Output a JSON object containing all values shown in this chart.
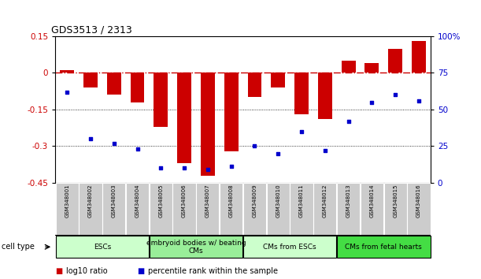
{
  "title": "GDS3513 / 2313",
  "samples": [
    "GSM348001",
    "GSM348002",
    "GSM348003",
    "GSM348004",
    "GSM348005",
    "GSM348006",
    "GSM348007",
    "GSM348008",
    "GSM348009",
    "GSM348010",
    "GSM348011",
    "GSM348012",
    "GSM348013",
    "GSM348014",
    "GSM348015",
    "GSM348016"
  ],
  "log10_ratio": [
    0.01,
    -0.06,
    -0.09,
    -0.12,
    -0.22,
    -0.37,
    -0.42,
    -0.32,
    -0.1,
    -0.06,
    -0.17,
    -0.19,
    0.05,
    0.04,
    0.1,
    0.13
  ],
  "percentile_rank": [
    62,
    30,
    27,
    23,
    10,
    10,
    9,
    11,
    25,
    20,
    35,
    22,
    42,
    55,
    60,
    56
  ],
  "ylim_left": [
    -0.45,
    0.15
  ],
  "ylim_right": [
    0,
    100
  ],
  "yticks_left": [
    0.15,
    0.0,
    -0.15,
    -0.3,
    -0.45
  ],
  "yticks_right": [
    100,
    75,
    50,
    25,
    0
  ],
  "hlines": [
    -0.15,
    -0.3
  ],
  "bar_color": "#cc0000",
  "scatter_color": "#0000cc",
  "dashed_line_color": "#cc0000",
  "cell_type_groups": [
    {
      "label": "ESCs",
      "start": 0,
      "end": 3,
      "color": "#ccffcc"
    },
    {
      "label": "embryoid bodies w/ beating\nCMs",
      "start": 4,
      "end": 7,
      "color": "#99ee99"
    },
    {
      "label": "CMs from ESCs",
      "start": 8,
      "end": 11,
      "color": "#ccffcc"
    },
    {
      "label": "CMs from fetal hearts",
      "start": 12,
      "end": 15,
      "color": "#44dd44"
    }
  ],
  "cell_type_label": "cell type",
  "legend_items": [
    {
      "color": "#cc0000",
      "label": "log10 ratio"
    },
    {
      "color": "#0000cc",
      "label": "percentile rank within the sample"
    }
  ],
  "sample_box_color": "#cccccc",
  "sample_box_edge": "#ffffff"
}
